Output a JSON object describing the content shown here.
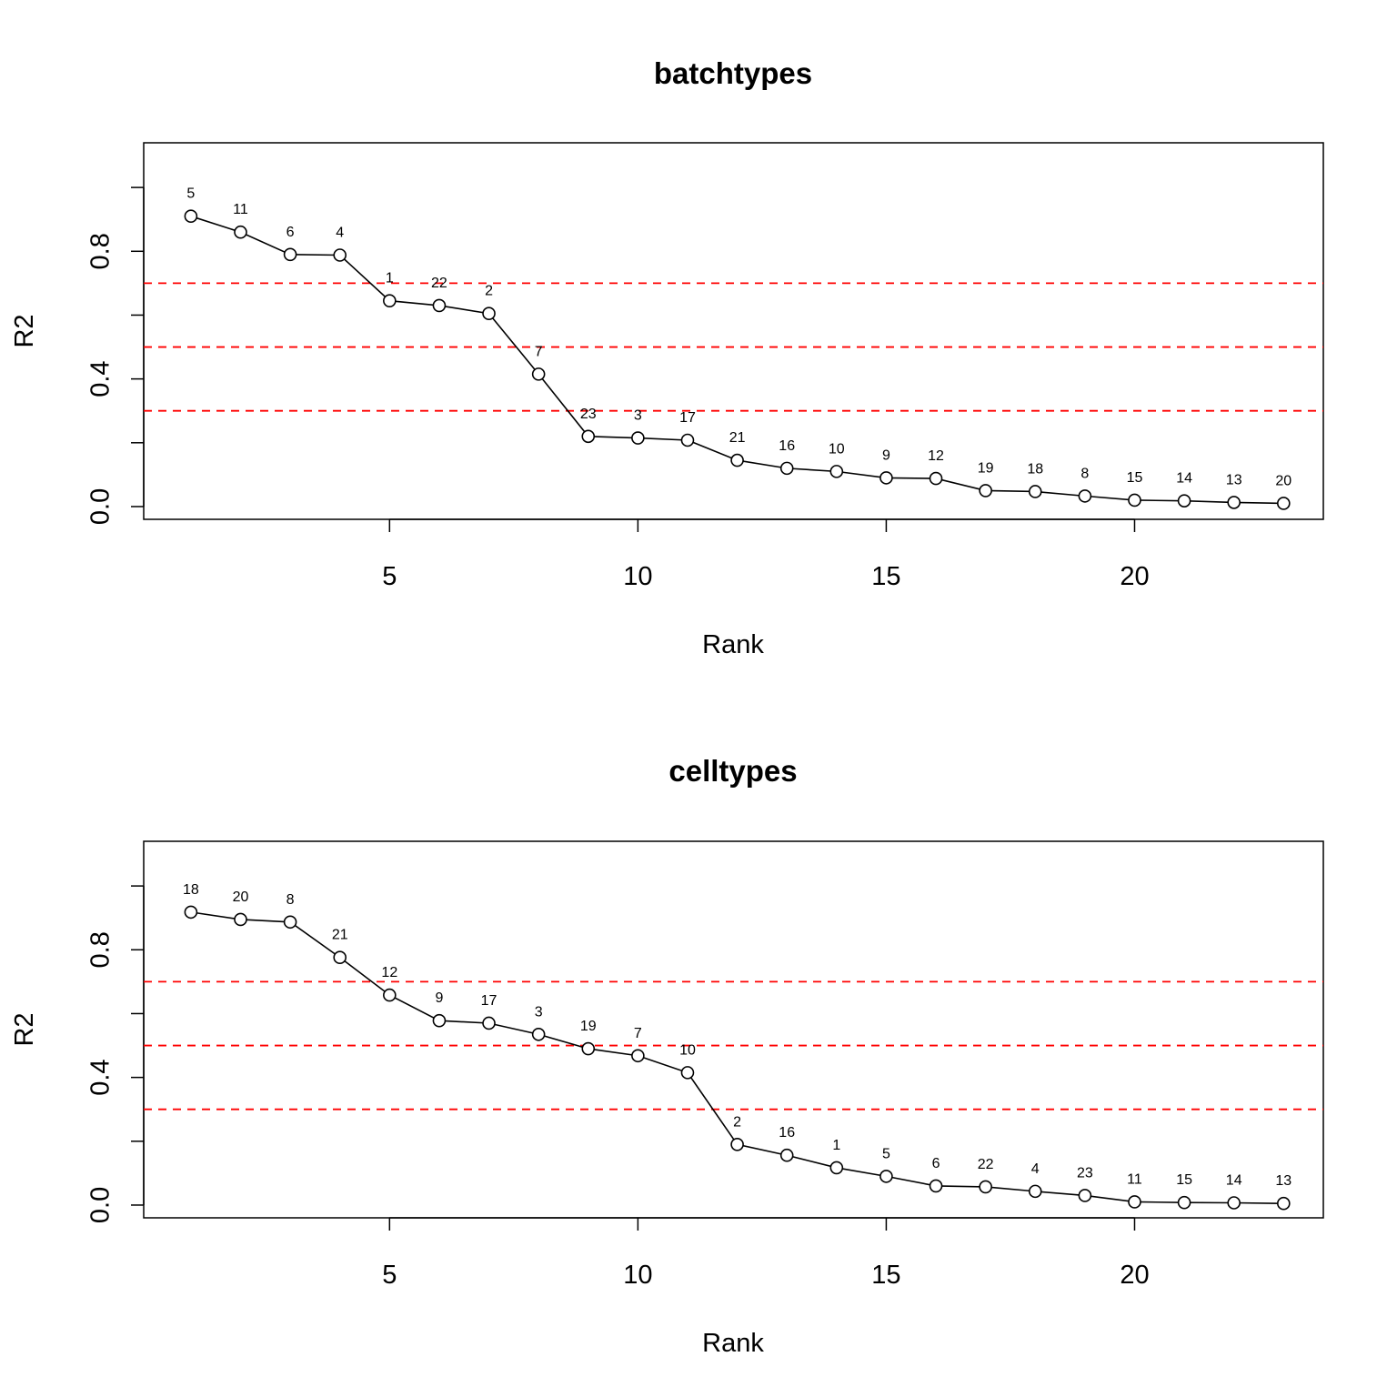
{
  "chart_data": [
    {
      "type": "line",
      "title": "batchtypes",
      "xlabel": "Rank",
      "ylabel": "R2",
      "x": [
        1,
        2,
        3,
        4,
        5,
        6,
        7,
        8,
        9,
        10,
        11,
        12,
        13,
        14,
        15,
        16,
        17,
        18,
        19,
        20,
        21,
        22,
        23
      ],
      "values": [
        0.91,
        0.86,
        0.79,
        0.788,
        0.645,
        0.63,
        0.605,
        0.415,
        0.22,
        0.215,
        0.208,
        0.145,
        0.12,
        0.11,
        0.09,
        0.088,
        0.05,
        0.047,
        0.033,
        0.02,
        0.018,
        0.013,
        0.01
      ],
      "point_labels": [
        "5",
        "11",
        "6",
        "4",
        "1",
        "22",
        "2",
        "7",
        "23",
        "3",
        "17",
        "21",
        "16",
        "10",
        "9",
        "12",
        "19",
        "18",
        "8",
        "15",
        "14",
        "13",
        "20"
      ],
      "hlines": [
        0.3,
        0.5,
        0.7
      ],
      "hline_color": "#ff0000",
      "line_color": "#000000",
      "xlim": [
        0.05,
        23.8
      ],
      "ylim": [
        -0.04,
        1.14
      ],
      "xticks": [
        5,
        10,
        15,
        20
      ],
      "xtick_labels": [
        "5",
        "10",
        "15",
        "20"
      ],
      "yticks": [
        0,
        0.2,
        0.4,
        0.6,
        0.8,
        1.0
      ],
      "ytick_labels": [
        "0.0",
        "0.4",
        "0.8"
      ],
      "ytick_label_values": [
        0,
        0.4,
        0.8
      ],
      "grid": false,
      "legend": "none"
    },
    {
      "type": "line",
      "title": "celltypes",
      "xlabel": "Rank",
      "ylabel": "R2",
      "x": [
        1,
        2,
        3,
        4,
        5,
        6,
        7,
        8,
        9,
        10,
        11,
        12,
        13,
        14,
        15,
        16,
        17,
        18,
        19,
        20,
        21,
        22,
        23
      ],
      "values": [
        0.918,
        0.895,
        0.887,
        0.776,
        0.658,
        0.578,
        0.57,
        0.535,
        0.49,
        0.468,
        0.415,
        0.19,
        0.156,
        0.117,
        0.09,
        0.06,
        0.057,
        0.043,
        0.03,
        0.01,
        0.008,
        0.007,
        0.005
      ],
      "point_labels": [
        "18",
        "20",
        "8",
        "21",
        "12",
        "9",
        "17",
        "3",
        "19",
        "7",
        "10",
        "2",
        "16",
        "1",
        "5",
        "6",
        "22",
        "4",
        "23",
        "11",
        "15",
        "14",
        "13"
      ],
      "hlines": [
        0.3,
        0.5,
        0.7
      ],
      "hline_color": "#ff0000",
      "line_color": "#000000",
      "xlim": [
        0.05,
        23.8
      ],
      "ylim": [
        -0.04,
        1.14
      ],
      "xticks": [
        5,
        10,
        15,
        20
      ],
      "xtick_labels": [
        "5",
        "10",
        "15",
        "20"
      ],
      "yticks": [
        0,
        0.2,
        0.4,
        0.6,
        0.8,
        1.0
      ],
      "ytick_labels": [
        "0.0",
        "0.4",
        "0.8"
      ],
      "ytick_label_values": [
        0,
        0.4,
        0.8
      ],
      "grid": false,
      "legend": "none"
    }
  ]
}
